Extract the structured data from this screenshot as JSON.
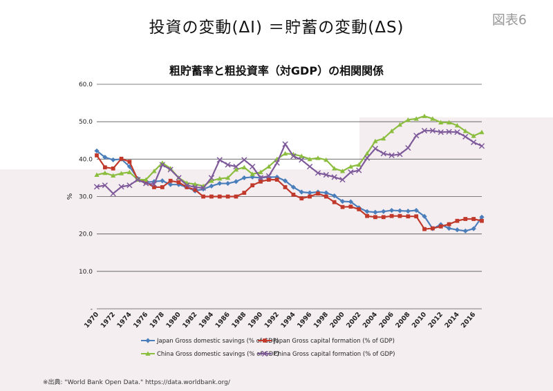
{
  "slide": {
    "title": "投資の変動(ΔI) ＝貯蓄の変動(ΔS)",
    "figure_label": "図表6",
    "source": "※出典: \"World Bank Open Data.\" https://data.worldbank.org/"
  },
  "chart_data": {
    "type": "line",
    "title": "粗貯蓄率と粗投資率（対GDP）の相関関係",
    "xlabel": "",
    "ylabel": "%",
    "ylim": [
      0,
      60
    ],
    "ytick_labels": [
      "-",
      "10.0",
      "20.0",
      "30.0",
      "40.0",
      "50.0",
      "60.0"
    ],
    "x": [
      1970,
      1971,
      1972,
      1973,
      1974,
      1975,
      1976,
      1977,
      1978,
      1979,
      1980,
      1981,
      1982,
      1983,
      1984,
      1985,
      1986,
      1987,
      1988,
      1989,
      1990,
      1991,
      1992,
      1993,
      1994,
      1995,
      1996,
      1997,
      1998,
      1999,
      2000,
      2001,
      2002,
      2003,
      2004,
      2005,
      2006,
      2007,
      2008,
      2009,
      2010,
      2011,
      2012,
      2013,
      2014,
      2015,
      2016,
      2017
    ],
    "xtick_labels": [
      "1970",
      "1972",
      "1974",
      "1976",
      "1978",
      "1980",
      "1982",
      "1984",
      "1986",
      "1988",
      "1990",
      "1992",
      "1994",
      "1996",
      "1998",
      "2000",
      "2002",
      "2004",
      "2006",
      "2008",
      "2010",
      "2012",
      "2014",
      "2016"
    ],
    "grid": "horizontal",
    "legend_position": "bottom",
    "series": [
      {
        "name": "Japan Gross domestic savings (% of GDP)",
        "color": "#4a7ebb",
        "marker": "diamond",
        "values": [
          42.2,
          40.5,
          39.8,
          40.0,
          38.0,
          34.8,
          33.8,
          34.0,
          34.2,
          33.2,
          33.2,
          32.5,
          31.5,
          32.0,
          32.8,
          33.5,
          33.5,
          34.0,
          35.0,
          35.2,
          35.0,
          35.2,
          35.2,
          34.2,
          32.5,
          31.2,
          31.0,
          31.2,
          31.0,
          30.2,
          28.7,
          28.6,
          27.0,
          26.0,
          25.8,
          26.0,
          26.3,
          26.2,
          26.1,
          26.3,
          24.7,
          21.4,
          22.5,
          21.5,
          21.1,
          20.8,
          21.4,
          24.5
        ]
      },
      {
        "name": "Japan Gross capital formation (% of GDP)",
        "color": "#c0392b",
        "marker": "square",
        "values": [
          41.0,
          37.8,
          37.5,
          40.1,
          39.3,
          34.5,
          33.8,
          32.5,
          32.5,
          34.2,
          33.8,
          32.5,
          31.8,
          30.0,
          30.0,
          30.0,
          30.0,
          30.0,
          31.0,
          33.0,
          34.0,
          34.5,
          34.5,
          32.5,
          30.5,
          29.5,
          30.0,
          30.8,
          30.0,
          28.5,
          27.2,
          27.3,
          26.6,
          24.8,
          24.5,
          24.5,
          24.8,
          24.8,
          24.7,
          24.7,
          21.3,
          21.5,
          22.0,
          22.6,
          23.5,
          24.0,
          24.0,
          23.5
        ]
      },
      {
        "name": "China Gross domestic savings (% of GDP)",
        "color": "#8bbd3f",
        "marker": "triangle",
        "values": [
          35.8,
          36.3,
          35.6,
          36.2,
          36.5,
          34.5,
          34.5,
          36.8,
          39.0,
          37.5,
          35.0,
          33.6,
          33.3,
          32.8,
          34.2,
          34.8,
          35.0,
          37.2,
          37.8,
          36.0,
          36.5,
          38.0,
          40.0,
          41.5,
          41.3,
          40.8,
          40.0,
          40.3,
          39.8,
          37.5,
          36.8,
          38.0,
          38.5,
          41.5,
          44.8,
          45.5,
          47.5,
          49.2,
          50.5,
          50.8,
          51.5,
          50.8,
          49.8,
          49.8,
          49.0,
          47.5,
          46.2,
          47.2
        ]
      },
      {
        "name": "China Gross capital formation (% of GDP)",
        "color": "#7e5a9a",
        "marker": "x",
        "values": [
          32.6,
          33.0,
          30.8,
          32.6,
          33.0,
          34.5,
          33.5,
          33.3,
          38.5,
          37.2,
          35.0,
          33.0,
          32.5,
          32.3,
          35.0,
          39.8,
          38.5,
          38.0,
          39.8,
          38.0,
          35.0,
          35.5,
          39.0,
          44.0,
          40.8,
          39.8,
          38.0,
          36.3,
          35.8,
          35.2,
          34.5,
          36.5,
          37.0,
          40.3,
          42.8,
          41.5,
          41.0,
          41.3,
          43.0,
          46.3,
          47.6,
          47.6,
          47.2,
          47.3,
          47.2,
          46.0,
          44.5,
          43.5
        ]
      }
    ]
  }
}
